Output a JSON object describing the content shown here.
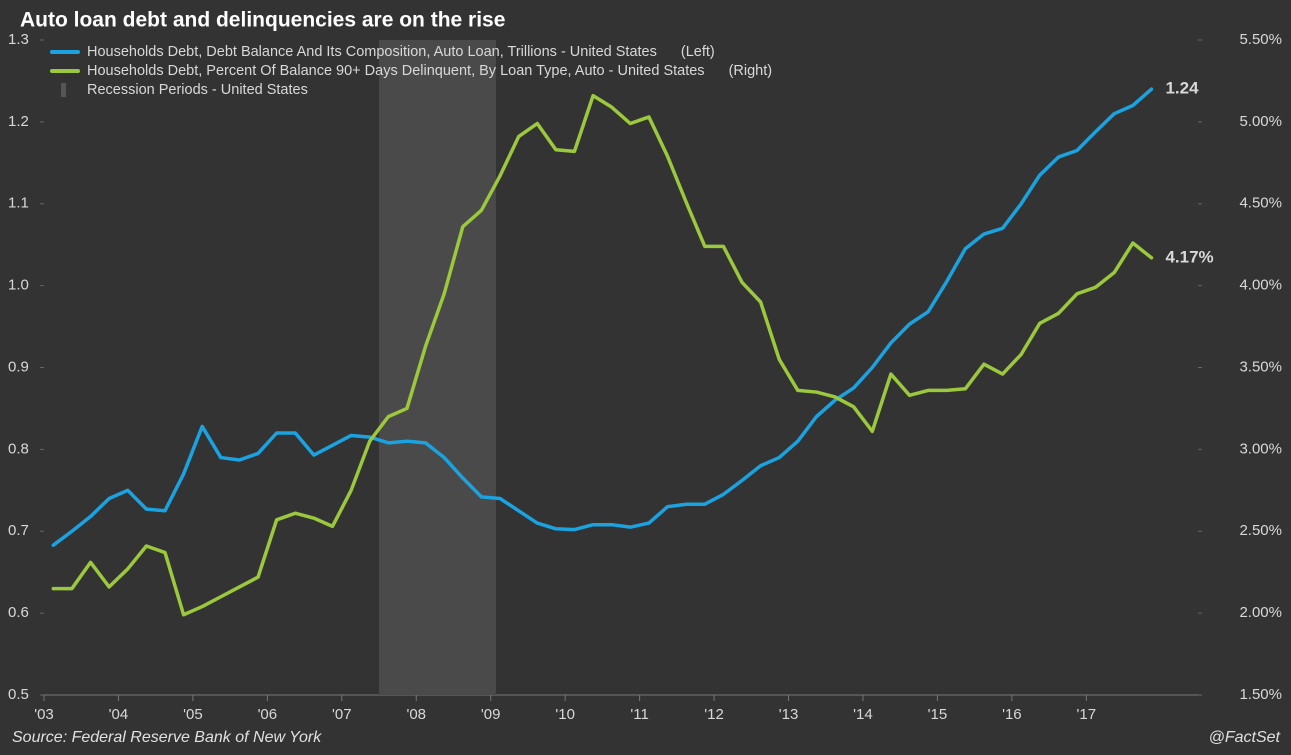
{
  "chart_data": {
    "type": "line",
    "title": "Auto loan debt and delinquencies are on the rise",
    "source": "Source: Federal Reserve Bank of New York",
    "credit": "@FactSet",
    "x": [
      2003.125,
      2003.375,
      2003.625,
      2003.875,
      2004.125,
      2004.375,
      2004.625,
      2004.875,
      2005.125,
      2005.375,
      2005.625,
      2005.875,
      2006.125,
      2006.375,
      2006.625,
      2006.875,
      2007.125,
      2007.375,
      2007.625,
      2007.875,
      2008.125,
      2008.375,
      2008.625,
      2008.875,
      2009.125,
      2009.375,
      2009.625,
      2009.875,
      2010.125,
      2010.375,
      2010.625,
      2010.875,
      2011.125,
      2011.375,
      2011.625,
      2011.875,
      2012.125,
      2012.375,
      2012.625,
      2012.875,
      2013.125,
      2013.375,
      2013.625,
      2013.875,
      2014.125,
      2014.375,
      2014.625,
      2014.875,
      2015.125,
      2015.375,
      2015.625,
      2015.875,
      2016.125,
      2016.375,
      2016.625,
      2016.875,
      2017.125,
      2017.375,
      2017.625,
      2017.875
    ],
    "xlim": [
      2003,
      2018.5
    ],
    "xticks": [
      {
        "value": 2003,
        "label": "'03"
      },
      {
        "value": 2004,
        "label": "'04"
      },
      {
        "value": 2005,
        "label": "'05"
      },
      {
        "value": 2006,
        "label": "'06"
      },
      {
        "value": 2007,
        "label": "'07"
      },
      {
        "value": 2008,
        "label": "'08"
      },
      {
        "value": 2009,
        "label": "'09"
      },
      {
        "value": 2010,
        "label": "'10"
      },
      {
        "value": 2011,
        "label": "'11"
      },
      {
        "value": 2012,
        "label": "'12"
      },
      {
        "value": 2013,
        "label": "'13"
      },
      {
        "value": 2014,
        "label": "'14"
      },
      {
        "value": 2015,
        "label": "'15"
      },
      {
        "value": 2016,
        "label": "'16"
      },
      {
        "value": 2017,
        "label": "'17"
      }
    ],
    "ylim": [
      0.5,
      1.3
    ],
    "yticks": [
      0.5,
      0.6,
      0.7,
      0.8,
      0.9,
      {
        "value": 1,
        "label": "1.0"
      },
      1.1,
      1.2,
      1.3
    ],
    "y2lim": [
      1.5,
      5.5
    ],
    "y2ticks": [
      {
        "value": 1.5,
        "label": "1.50%"
      },
      {
        "value": 2,
        "label": "2.00%"
      },
      {
        "value": 2.5,
        "label": "2.50%"
      },
      {
        "value": 3,
        "label": "3.00%"
      },
      {
        "value": 3.5,
        "label": "3.50%"
      },
      {
        "value": 4,
        "label": "4.00%"
      },
      {
        "value": 4.5,
        "label": "4.50%"
      },
      {
        "value": 5,
        "label": "5.00%"
      },
      {
        "value": 5.5,
        "label": "5.50%"
      }
    ],
    "recession": {
      "name": "Recession Periods - United States",
      "color": "#4a4a4a",
      "range": [
        2007.5,
        2009.07
      ]
    },
    "series": [
      {
        "name": "Households Debt, Debt Balance And Its Composition, Auto Loan, Trillions - United States",
        "legend_suffix": "(Left)",
        "color": "#1aa3e0",
        "axis": "y",
        "values": [
          0.683,
          0.7,
          0.718,
          0.74,
          0.75,
          0.727,
          0.725,
          0.77,
          0.828,
          0.79,
          0.787,
          0.795,
          0.82,
          0.82,
          0.793,
          0.805,
          0.817,
          0.815,
          0.808,
          0.81,
          0.808,
          0.79,
          0.765,
          0.742,
          0.74,
          0.725,
          0.71,
          0.703,
          0.702,
          0.708,
          0.708,
          0.705,
          0.71,
          0.73,
          0.733,
          0.733,
          0.745,
          0.762,
          0.78,
          0.79,
          0.81,
          0.84,
          0.86,
          0.875,
          0.9,
          0.93,
          0.953,
          0.968,
          1.005,
          1.045,
          1.063,
          1.07,
          1.1,
          1.135,
          1.157,
          1.165,
          1.188,
          1.21,
          1.22,
          1.24
        ],
        "value_labels": [
          null,
          null,
          null,
          null,
          null,
          null,
          null,
          null,
          null,
          null,
          null,
          null,
          null,
          null,
          null,
          null,
          null,
          null,
          null,
          null,
          null,
          null,
          null,
          null,
          null,
          null,
          null,
          null,
          null,
          null,
          null,
          null,
          null,
          null,
          null,
          null,
          null,
          null,
          null,
          null,
          null,
          null,
          null,
          null,
          null,
          null,
          null,
          null,
          null,
          null,
          null,
          null,
          null,
          null,
          null,
          null,
          null,
          null,
          null,
          "1.24"
        ]
      },
      {
        "name": "Households Debt, Percent Of Balance 90+ Days Delinquent, By Loan Type, Auto - United States",
        "legend_suffix": "(Right)",
        "color": "#9bc83c",
        "axis": "y2",
        "values": [
          2.15,
          2.15,
          2.31,
          2.16,
          2.27,
          2.41,
          2.37,
          1.99,
          2.04,
          2.1,
          2.16,
          2.22,
          2.57,
          2.61,
          2.58,
          2.53,
          2.75,
          3.05,
          3.2,
          3.25,
          3.63,
          3.95,
          4.36,
          4.46,
          4.67,
          4.91,
          4.99,
          4.83,
          4.82,
          5.16,
          5.09,
          4.99,
          5.03,
          4.79,
          4.51,
          4.24,
          4.24,
          4.02,
          3.9,
          3.55,
          3.36,
          3.35,
          3.32,
          3.26,
          3.11,
          3.46,
          3.33,
          3.36,
          3.36,
          3.37,
          3.52,
          3.46,
          3.58,
          3.77,
          3.83,
          3.95,
          3.99,
          4.08,
          4.26,
          4.17
        ],
        "value_labels": [
          null,
          null,
          null,
          null,
          null,
          null,
          null,
          null,
          null,
          null,
          null,
          null,
          null,
          null,
          null,
          null,
          null,
          null,
          null,
          null,
          null,
          null,
          null,
          null,
          null,
          null,
          null,
          null,
          null,
          null,
          null,
          null,
          null,
          null,
          null,
          null,
          null,
          null,
          null,
          null,
          null,
          null,
          null,
          null,
          null,
          null,
          null,
          null,
          null,
          null,
          null,
          null,
          null,
          null,
          null,
          null,
          null,
          null,
          null,
          "4.17%"
        ]
      }
    ]
  }
}
